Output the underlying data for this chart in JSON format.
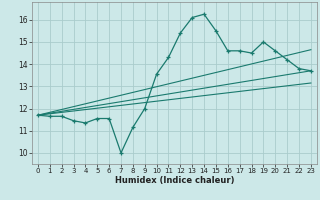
{
  "title": "",
  "xlabel": "Humidex (Indice chaleur)",
  "ylabel": "",
  "bg_color": "#cce8e8",
  "grid_color": "#aacccc",
  "line_color": "#1a7a6e",
  "xlim": [
    -0.5,
    23.5
  ],
  "ylim": [
    9.5,
    16.8
  ],
  "yticks": [
    10,
    11,
    12,
    13,
    14,
    15,
    16
  ],
  "xticks": [
    0,
    1,
    2,
    3,
    4,
    5,
    6,
    7,
    8,
    9,
    10,
    11,
    12,
    13,
    14,
    15,
    16,
    17,
    18,
    19,
    20,
    21,
    22,
    23
  ],
  "series1_x": [
    0,
    1,
    2,
    3,
    4,
    5,
    6,
    7,
    8,
    9,
    10,
    11,
    12,
    13,
    14,
    15,
    16,
    17,
    18,
    19,
    20,
    21,
    22,
    23
  ],
  "series1_y": [
    11.7,
    11.65,
    11.65,
    11.45,
    11.35,
    11.55,
    11.55,
    10.0,
    11.15,
    12.0,
    13.55,
    14.3,
    15.4,
    16.1,
    16.25,
    15.5,
    14.6,
    14.6,
    14.5,
    15.0,
    14.6,
    14.2,
    13.8,
    13.7
  ],
  "series2_x": [
    0,
    23
  ],
  "series2_y": [
    11.7,
    13.7
  ],
  "series3_x": [
    0,
    23
  ],
  "series3_y": [
    11.7,
    14.65
  ],
  "series4_x": [
    0,
    23
  ],
  "series4_y": [
    11.7,
    13.15
  ]
}
